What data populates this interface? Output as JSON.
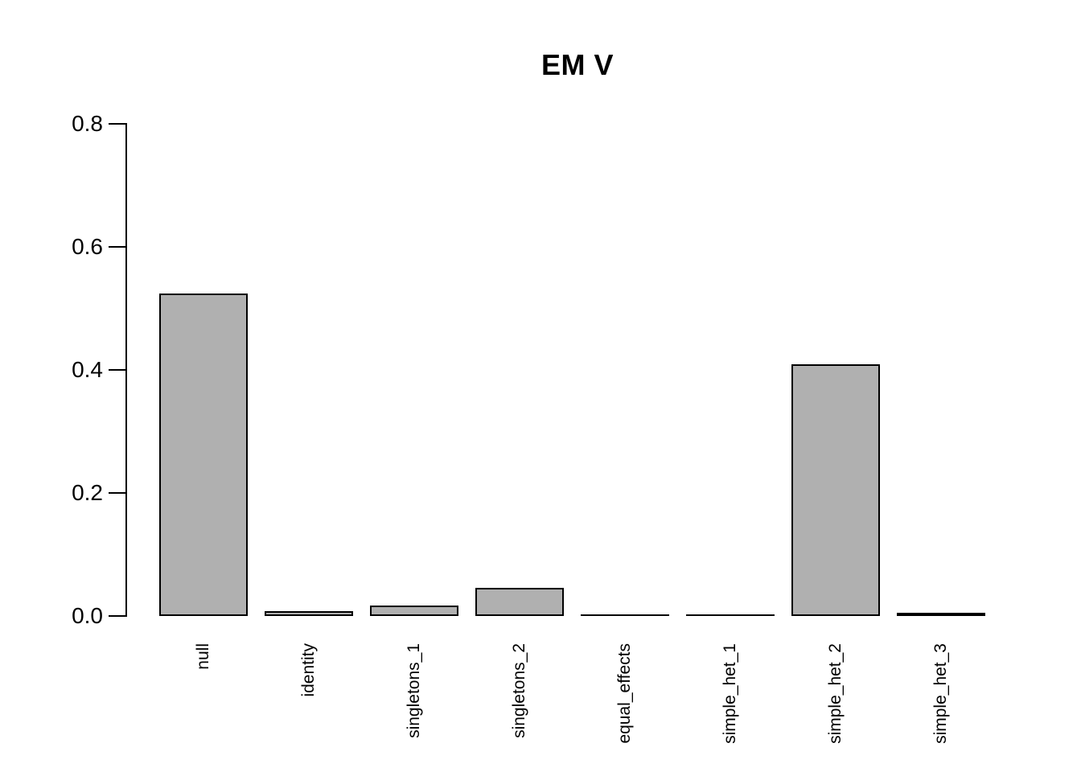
{
  "title": "EM V",
  "chart_data": {
    "type": "bar",
    "title": "EM V",
    "xlabel": "",
    "ylabel": "",
    "categories": [
      "null",
      "identity",
      "singletons_1",
      "singletons_2",
      "equal_effects",
      "simple_het_1",
      "simple_het_2",
      "simple_het_3"
    ],
    "values": [
      0.524,
      0.008,
      0.017,
      0.046,
      0.001,
      0.001,
      0.409,
      0.004
    ],
    "ylim": [
      0,
      0.8
    ],
    "yticks": [
      0.0,
      0.2,
      0.4,
      0.6,
      0.8
    ],
    "ytick_labels": [
      "0.0",
      "0.2",
      "0.4",
      "0.6",
      "0.8"
    ],
    "grid": false,
    "legend": "none",
    "x_axis_line": false,
    "bar_fill_color": "#B0B0B0",
    "bar_border_color": "#000000",
    "axis_color": "#000000",
    "background_color": "#FFFFFF",
    "text_color": "#000000"
  }
}
